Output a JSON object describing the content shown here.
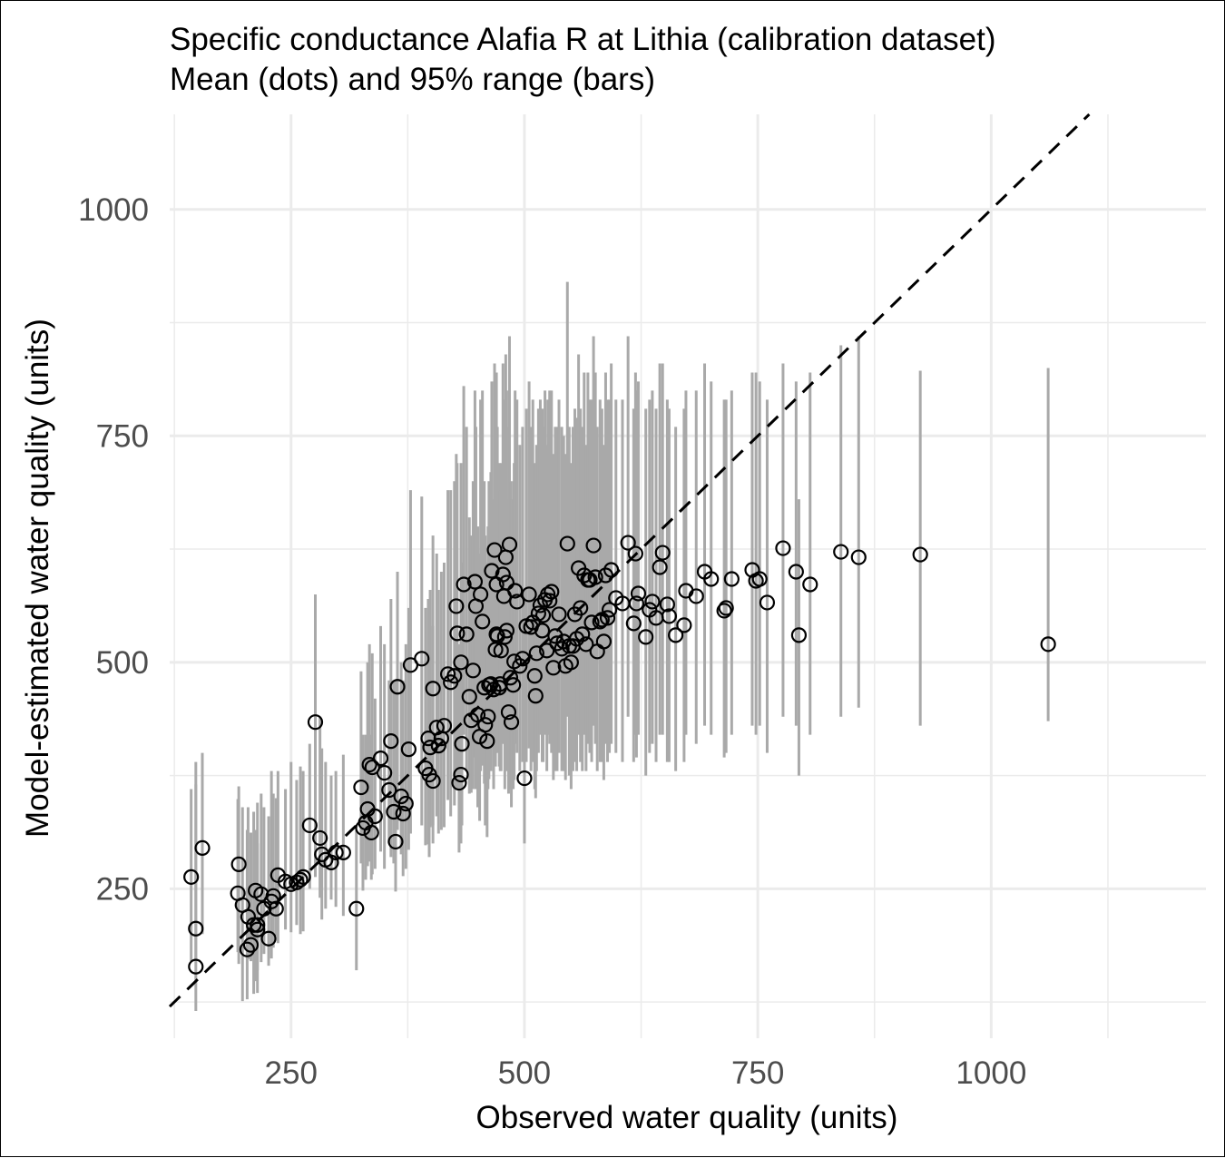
{
  "chart_data": {
    "type": "scatter",
    "title": "Specific conductance Alafia R at Lithia (calibration dataset)",
    "subtitle": "Mean (dots) and 95% range (bars)",
    "xlabel": "Observed water quality (units)",
    "ylabel": "Model-estimated water quality (units)",
    "xlim": [
      120,
      1230
    ],
    "ylim": [
      85,
      1105
    ],
    "xticks": [
      250,
      500,
      750,
      1000
    ],
    "yticks": [
      250,
      500,
      750,
      1000
    ],
    "x_tick_labels": [
      "250",
      "500",
      "750",
      "1000"
    ],
    "y_tick_labels": [
      "250",
      "500",
      "750",
      "1000"
    ],
    "grid": true,
    "reference_line": "y = x (dashed)",
    "colors": {
      "points": "#000000",
      "bars": "#a9a9a9",
      "grid": "#ebebeb",
      "reference_line": "#000000"
    },
    "series": [
      {
        "x": [
          143,
          148,
          148,
          155,
          194,
          193,
          198,
          203,
          204,
          207,
          210,
          212,
          214,
          214,
          218,
          221,
          226,
          229,
          231,
          234,
          236,
          244,
          250,
          256,
          260,
          263,
          270,
          276,
          281,
          283,
          287,
          293,
          298,
          306,
          320,
          325,
          327,
          330,
          332,
          334,
          336,
          337,
          340,
          346,
          350,
          355,
          357,
          360,
          362,
          364,
          368,
          370,
          373,
          376,
          378,
          390,
          394,
          397,
          398,
          399,
          402,
          402,
          406,
          408,
          411,
          414,
          418,
          421,
          425,
          427,
          428,
          430,
          432,
          432,
          433,
          435,
          438,
          441,
          443,
          445,
          447,
          448,
          450,
          452,
          453,
          455,
          457,
          458,
          460,
          461,
          462,
          464,
          465,
          467,
          468,
          469,
          470,
          470,
          471,
          473,
          474,
          475,
          477,
          478,
          479,
          480,
          481,
          481,
          483,
          484,
          485,
          486,
          488,
          489,
          490,
          492,
          495,
          498,
          500,
          502,
          505,
          507,
          509,
          511,
          512,
          513,
          515,
          517,
          519,
          520,
          522,
          524,
          525,
          527,
          529,
          531,
          533,
          535,
          537,
          540,
          542,
          544,
          546,
          548,
          550,
          552,
          554,
          556,
          558,
          560,
          562,
          564,
          566,
          568,
          570,
          572,
          574,
          576,
          578,
          581,
          583,
          585,
          587,
          589,
          591,
          593,
          598,
          605,
          611,
          617,
          619,
          620,
          622,
          630,
          634,
          637,
          641,
          645,
          648,
          653,
          655,
          662,
          671,
          673,
          684,
          693,
          700,
          714,
          716,
          722,
          744,
          748,
          752,
          760,
          777,
          791,
          794,
          806,
          839,
          858,
          924,
          1061
        ],
        "y": [
          263,
          206,
          164,
          295,
          277,
          245,
          232,
          183,
          219,
          188,
          210,
          248,
          205,
          210,
          244,
          228,
          195,
          236,
          242,
          228,
          265,
          258,
          255,
          257,
          260,
          263,
          320,
          434,
          306,
          288,
          282,
          279,
          290,
          290,
          228,
          362,
          317,
          323,
          338,
          387,
          312,
          384,
          330,
          394,
          378,
          359,
          413,
          335,
          302,
          473,
          352,
          333,
          344,
          404,
          497,
          504,
          383,
          416,
          376,
          406,
          369,
          471,
          428,
          408,
          416,
          430,
          487,
          478,
          485,
          562,
          532,
          367,
          376,
          500,
          410,
          586,
          531,
          462,
          436,
          491,
          589,
          562,
          442,
          418,
          575,
          545,
          472,
          431,
          413,
          440,
          475,
          476,
          601,
          470,
          624,
          514,
          531,
          586,
          529,
          472,
          476,
          513,
          597,
          573,
          528,
          616,
          588,
          535,
          445,
          630,
          483,
          434,
          475,
          501,
          579,
          567,
          496,
          504,
          372,
          540,
          575,
          539,
          544,
          485,
          463,
          510,
          554,
          563,
          535,
          552,
          569,
          513,
          575,
          568,
          578,
          494,
          529,
          521,
          553,
          515,
          523,
          496,
          631,
          518,
          500,
          518,
          553,
          526,
          604,
          560,
          531,
          596,
          520,
          591,
          591,
          544,
          629,
          594,
          512,
          545,
          547,
          523,
          596,
          549,
          558,
          602,
          571,
          565,
          632,
          543,
          620,
          565,
          576,
          528,
          558,
          567,
          549,
          605,
          621,
          564,
          551,
          530,
          541,
          579,
          573,
          600,
          592,
          557,
          560,
          592,
          602,
          590,
          592,
          566,
          626,
          600,
          530,
          586,
          622,
          616,
          619,
          520
        ],
        "y_low": [
          170,
          172,
          115,
          200,
          167,
          180,
          126,
          128,
          172,
          170,
          134,
          148,
          135,
          160,
          169,
          178,
          165,
          173,
          185,
          198,
          190,
          205,
          202,
          210,
          200,
          203,
          250,
          263,
          240,
          216,
          228,
          238,
          230,
          220,
          160,
          278,
          248,
          260,
          275,
          280,
          260,
          266,
          272,
          291,
          272,
          300,
          285,
          278,
          247,
          315,
          288,
          264,
          272,
          293,
          311,
          320,
          298,
          299,
          285,
          318,
          300,
          320,
          330,
          311,
          315,
          318,
          348,
          330,
          342,
          362,
          360,
          290,
          300,
          360,
          320,
          420,
          380,
          355,
          356,
          360,
          395,
          360,
          340,
          325,
          380,
          386,
          366,
          320,
          307,
          360,
          371,
          380,
          420,
          360,
          420,
          385,
          400,
          420,
          400,
          385,
          380,
          380,
          410,
          410,
          360,
          435,
          380,
          380,
          355,
          430,
          360,
          340,
          360,
          370,
          410,
          400,
          380,
          390,
          300,
          390,
          405,
          380,
          390,
          360,
          350,
          380,
          400,
          420,
          390,
          390,
          420,
          380,
          420,
          410,
          400,
          370,
          380,
          380,
          400,
          380,
          380,
          370,
          440,
          375,
          360,
          380,
          390,
          380,
          420,
          390,
          380,
          420,
          380,
          410,
          400,
          390,
          430,
          410,
          380,
          390,
          390,
          370,
          410,
          390,
          400,
          410,
          400,
          390,
          440,
          390,
          420,
          395,
          420,
          375,
          400,
          410,
          390,
          420,
          420,
          390,
          390,
          380,
          390,
          420,
          410,
          430,
          420,
          395,
          400,
          420,
          430,
          420,
          430,
          400,
          440,
          430,
          375,
          420,
          440,
          450,
          430,
          435
        ],
        "y_high": [
          360,
          390,
          365,
          400,
          363,
          349,
          340,
          315,
          340,
          312,
          335,
          315,
          300,
          345,
          355,
          340,
          330,
          380,
          355,
          350,
          380,
          360,
          390,
          370,
          385,
          380,
          410,
          575,
          440,
          405,
          390,
          375,
          380,
          398,
          315,
          490,
          420,
          420,
          500,
          520,
          420,
          510,
          460,
          540,
          520,
          480,
          570,
          480,
          480,
          600,
          500,
          480,
          520,
          560,
          690,
          683,
          560,
          570,
          540,
          580,
          540,
          640,
          620,
          580,
          600,
          610,
          690,
          690,
          700,
          730,
          720,
          520,
          550,
          720,
          610,
          805,
          760,
          660,
          640,
          700,
          800,
          760,
          650,
          620,
          790,
          800,
          700,
          640,
          610,
          650,
          700,
          710,
          810,
          680,
          830,
          720,
          750,
          820,
          760,
          720,
          690,
          720,
          830,
          790,
          740,
          840,
          800,
          760,
          680,
          860,
          700,
          680,
          700,
          720,
          800,
          790,
          740,
          760,
          580,
          780,
          810,
          760,
          790,
          720,
          690,
          740,
          780,
          790,
          780,
          760,
          800,
          740,
          790,
          800,
          800,
          730,
          760,
          760,
          790,
          760,
          750,
          730,
          920,
          760,
          720,
          760,
          780,
          770,
          840,
          780,
          760,
          820,
          740,
          820,
          790,
          790,
          860,
          820,
          760,
          790,
          780,
          740,
          820,
          790,
          790,
          830,
          790,
          790,
          860,
          780,
          820,
          800,
          810,
          780,
          790,
          800,
          780,
          830,
          830,
          790,
          780,
          760,
          780,
          800,
          800,
          830,
          810,
          790,
          790,
          800,
          820,
          820,
          810,
          790,
          830,
          810,
          680,
          820,
          850,
          860,
          822,
          825
        ]
      }
    ]
  }
}
